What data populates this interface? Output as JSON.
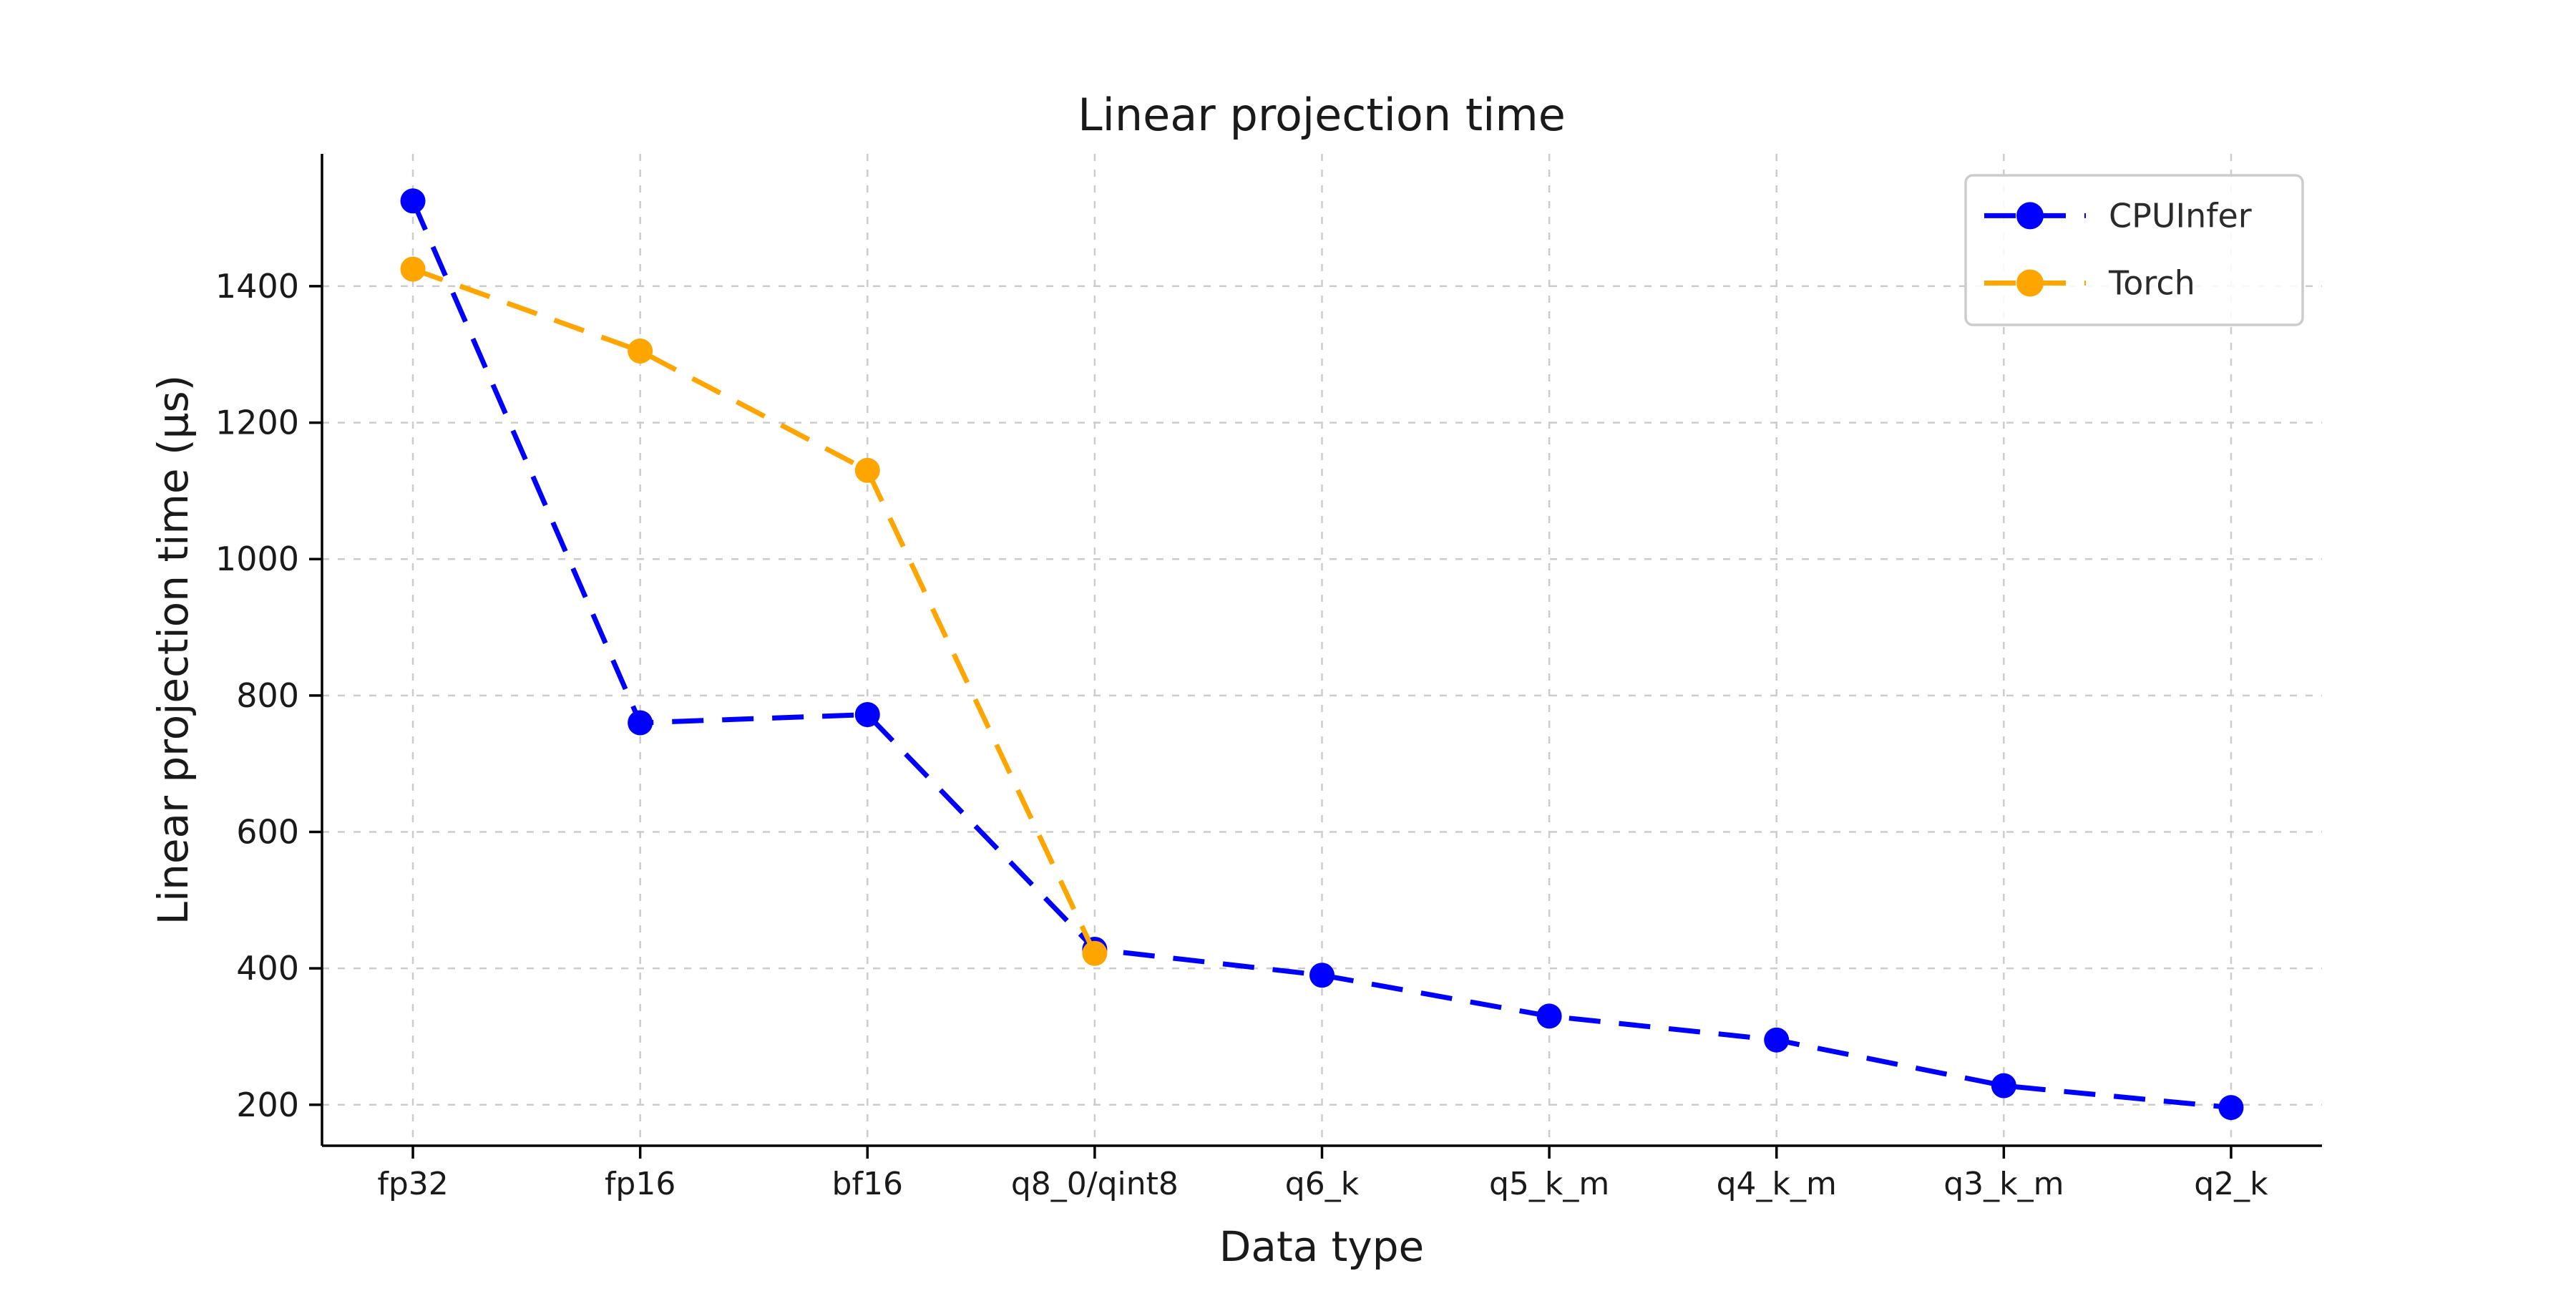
{
  "figure": {
    "background": "#ffffff",
    "text_color": "#1a1a1a",
    "spine_color": "#000000",
    "grid_color": "#cccccc"
  },
  "chart_data": {
    "type": "line",
    "title": "Linear projection time",
    "xlabel": "Data type",
    "ylabel": "Linear projection time (μs)",
    "categories": [
      "fp32",
      "fp16",
      "bf16",
      "q8_0/qint8",
      "q6_k",
      "q5_k_m",
      "q4_k_m",
      "q3_k_m",
      "q2_k"
    ],
    "series": [
      {
        "name": "CPUInfer",
        "color": "#0000ff",
        "linestyle": "dashed",
        "marker": "circle",
        "values": [
          1525,
          760,
          772,
          428,
          390,
          330,
          295,
          228,
          196
        ]
      },
      {
        "name": "Torch",
        "color": "#ffa500",
        "linestyle": "dashed",
        "marker": "circle",
        "values": [
          1425,
          1305,
          1130,
          422,
          null,
          null,
          null,
          null,
          null
        ]
      }
    ],
    "yticks": [
      200,
      400,
      600,
      800,
      1000,
      1200,
      1400
    ],
    "ylim": [
      140,
      1594
    ],
    "grid": {
      "visible": true,
      "style": "dashed",
      "color": "#cccccc"
    },
    "legend": {
      "position": "upper right",
      "entries": [
        "CPUInfer",
        "Torch"
      ]
    }
  }
}
